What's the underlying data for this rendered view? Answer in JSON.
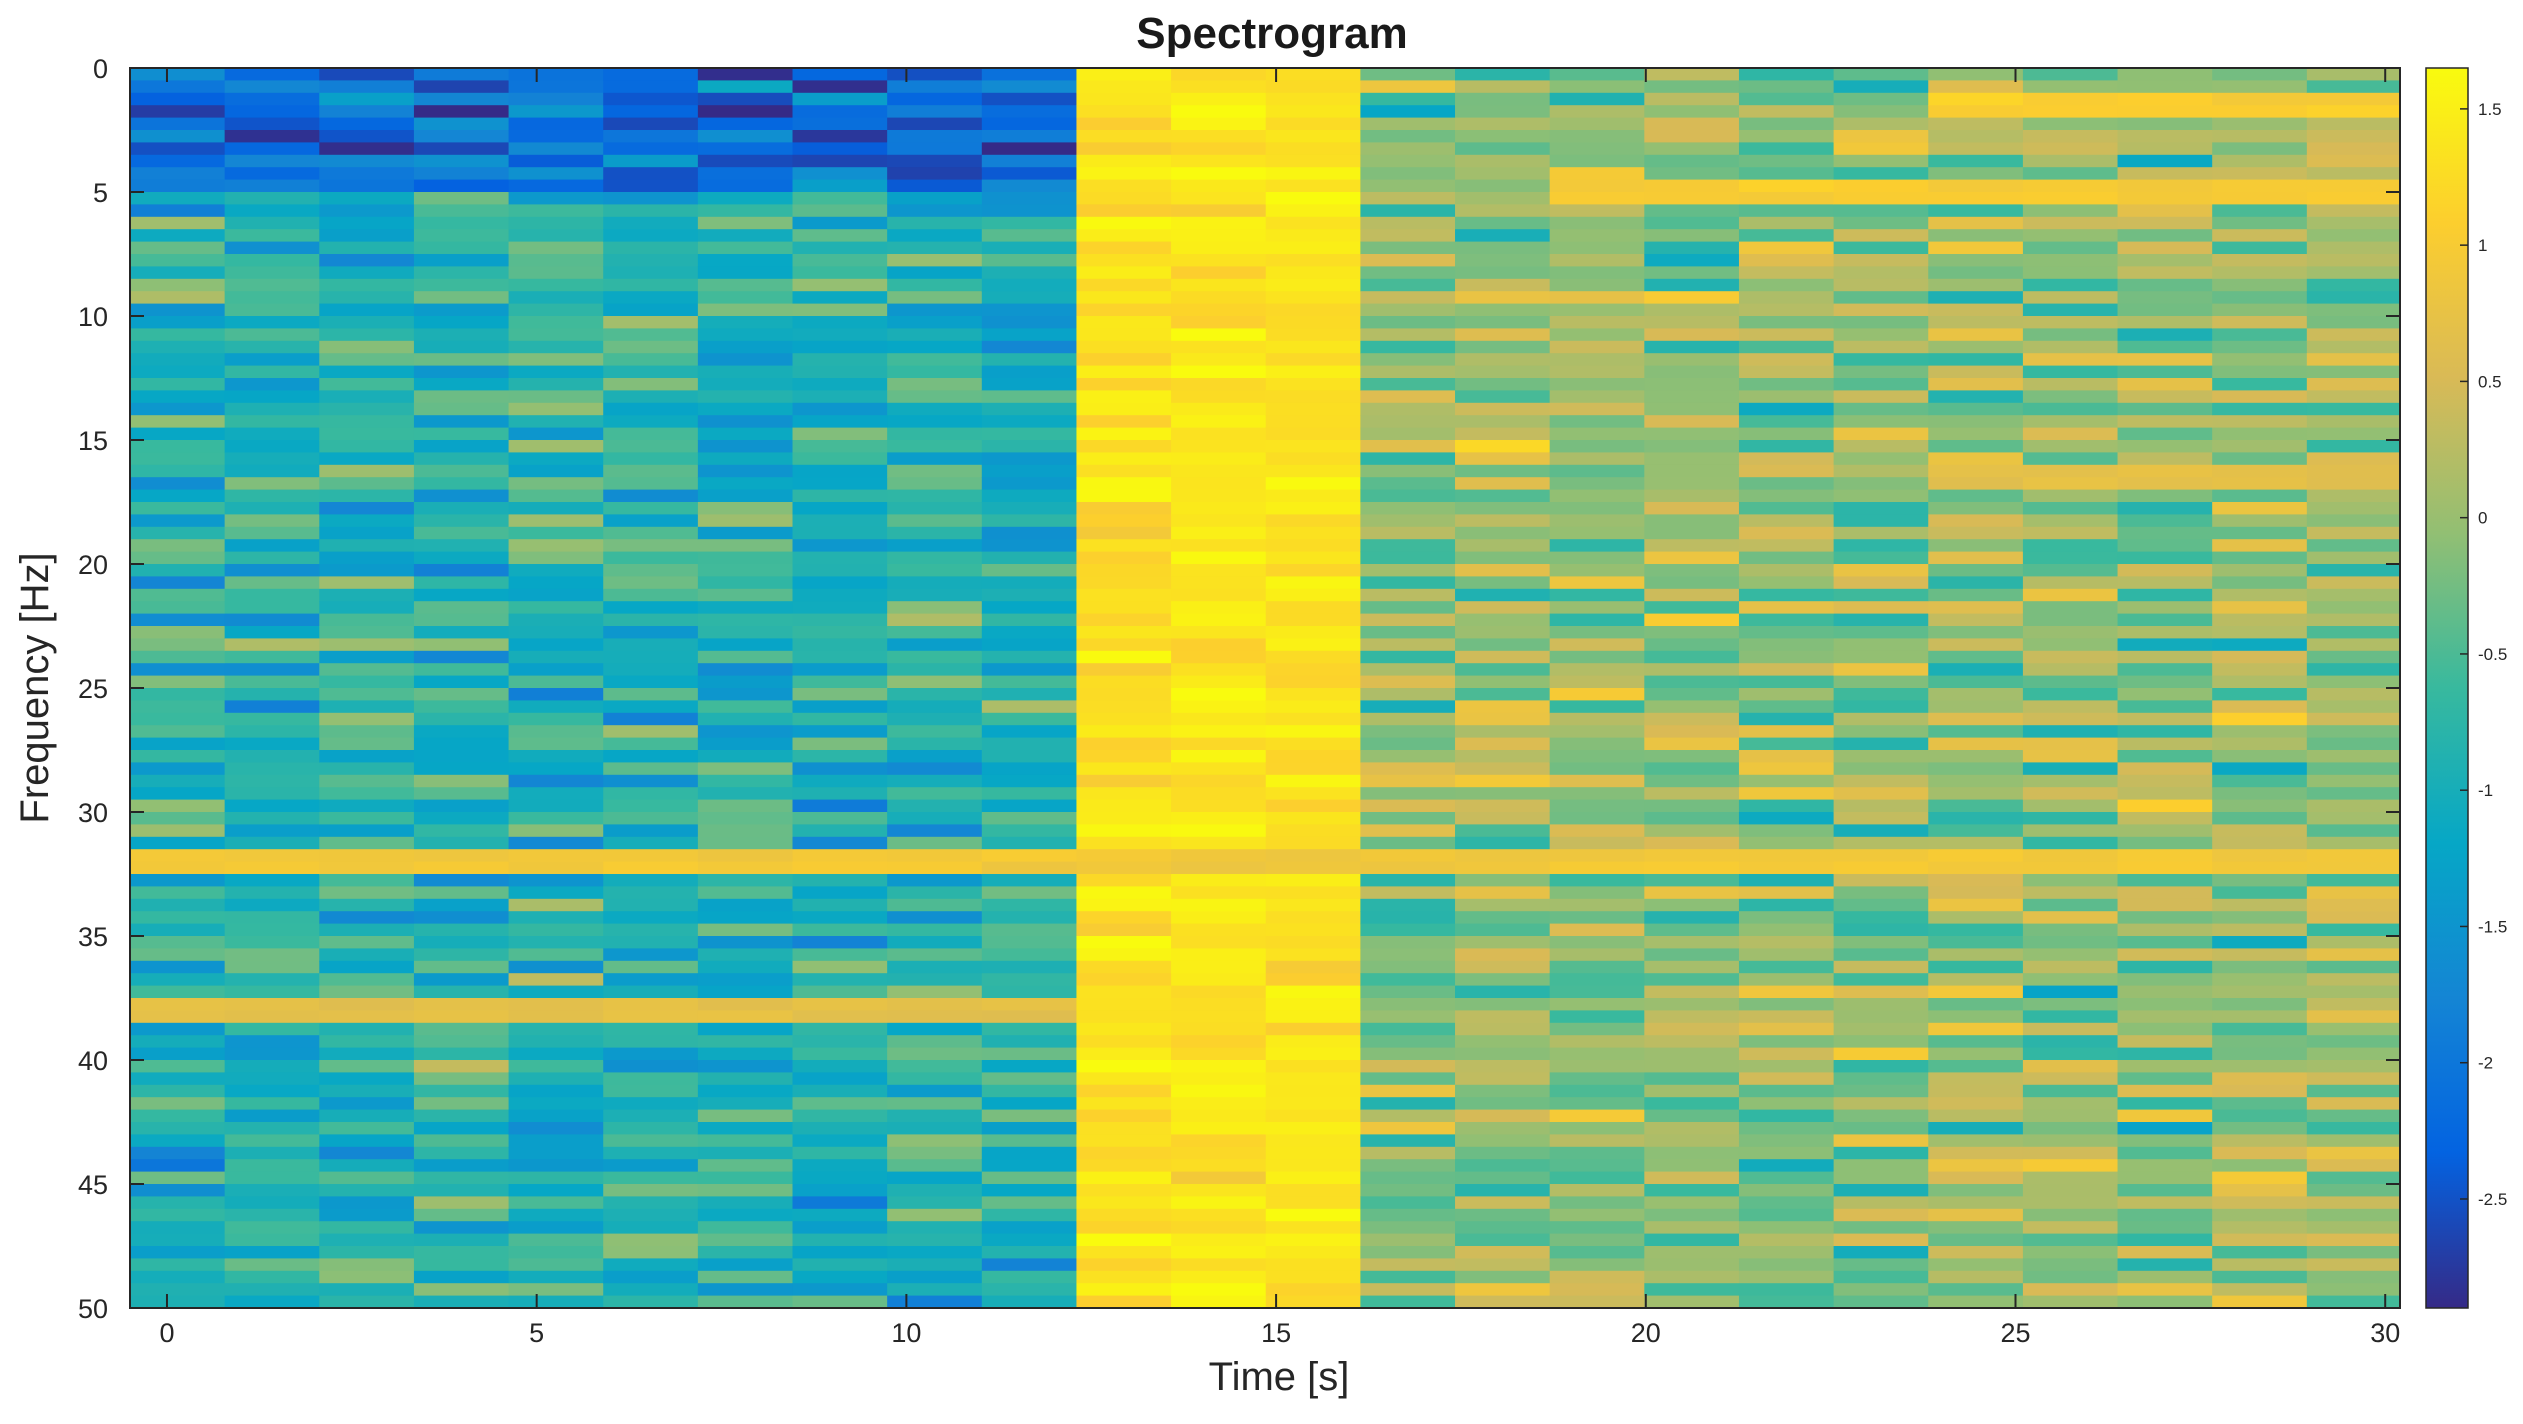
{
  "chart_data": {
    "type": "heatmap",
    "title": "Spectrogram",
    "xlabel": "Time [s]",
    "ylabel": "Frequency [Hz]",
    "xlim": [
      -0.5,
      30.2
    ],
    "ylim": [
      0,
      50
    ],
    "y_axis_direction": "top-to-bottom",
    "x_ticks": [
      0,
      5,
      10,
      15,
      20,
      25,
      30
    ],
    "x_tick_labels": [
      "0",
      "5",
      "10",
      "15",
      "20",
      "25",
      "30"
    ],
    "y_ticks": [
      0,
      5,
      10,
      15,
      20,
      25,
      30,
      35,
      40,
      45,
      50
    ],
    "y_tick_labels": [
      "0",
      "5",
      "10",
      "15",
      "20",
      "25",
      "30",
      "35",
      "40",
      "45",
      "50"
    ],
    "time_bins": 24,
    "time_bin_width_s": 1.28,
    "freq_bins": 100,
    "freq_bin_width_hz": 0.5,
    "colormap": "parula",
    "colormap_stops": [
      "#352a87",
      "#0363e1",
      "#1485d4",
      "#06a7c6",
      "#38b99e",
      "#92bf73",
      "#d9ba56",
      "#fcce2e",
      "#f9fb0e"
    ],
    "color_range": [
      -2.9,
      1.65
    ],
    "colorbar": {
      "ticks": [
        1.5,
        1,
        0.5,
        0,
        -0.5,
        -1,
        -1.5,
        -2,
        -2.5
      ],
      "tick_labels": [
        "1.5",
        "1",
        "0.5",
        "0",
        "-0.5",
        "-1",
        "-1.5",
        "-2",
        "-2.5"
      ]
    },
    "segments": [
      {
        "name": "quiet",
        "time_range_s": [
          -0.5,
          12.3
        ],
        "mean_value": -0.85,
        "low_freq_mean": -2.1,
        "low_freq_below_hz": 5
      },
      {
        "name": "burst",
        "time_range_s": [
          12.3,
          16.1
        ],
        "mean_value": 1.35
      },
      {
        "name": "active",
        "time_range_s": [
          16.1,
          30.2
        ],
        "mean_value": -0.05
      }
    ],
    "persistent_bands": [
      {
        "freq_hz": 32,
        "value": 0.9,
        "time_range_s": [
          -0.5,
          30.2
        ]
      },
      {
        "freq_hz": 38,
        "value": 0.7,
        "time_range_s": [
          -0.5,
          12.3
        ]
      },
      {
        "freq_hz": 5,
        "value": 1.0,
        "time_range_s": [
          18.5,
          30.2
        ]
      },
      {
        "freq_hz": 1.5,
        "value": 1.05,
        "time_range_s": [
          23.5,
          30.2
        ]
      },
      {
        "freq_hz": 16.5,
        "value": 0.7,
        "time_range_s": [
          23.5,
          30.2
        ]
      }
    ]
  }
}
